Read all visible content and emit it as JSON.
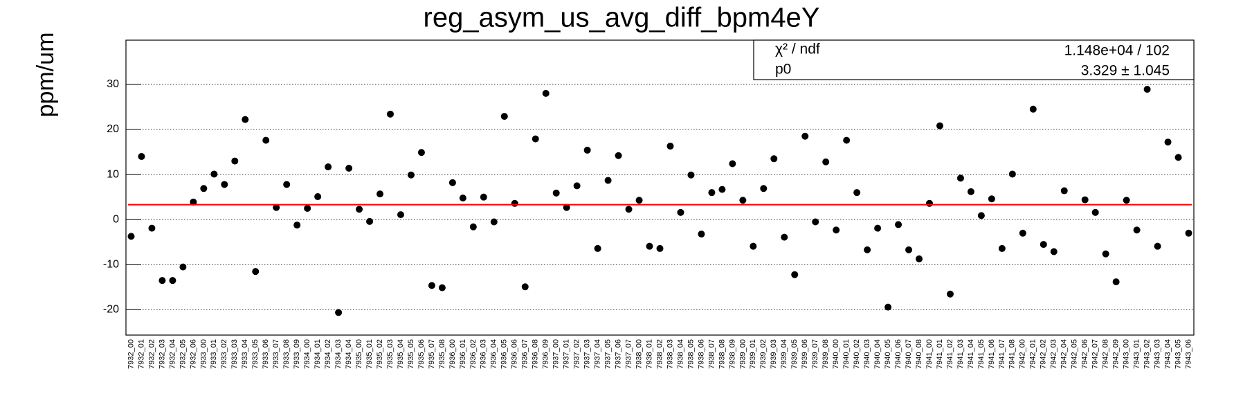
{
  "chart_data": {
    "type": "scatter",
    "title": "reg_asym_us_avg_diff_bpm4eY",
    "y_label": "ppm/um",
    "categories": [
      "7932_00",
      "7932_01",
      "7932_02",
      "7932_03",
      "7932_04",
      "7932_05",
      "7932_06",
      "7933_00",
      "7933_01",
      "7933_02",
      "7933_03",
      "7933_04",
      "7933_05",
      "7933_06",
      "7933_07",
      "7933_08",
      "7933_09",
      "7934_00",
      "7934_01",
      "7934_02",
      "7934_03",
      "7934_04",
      "7935_00",
      "7935_01",
      "7935_02",
      "7935_03",
      "7935_04",
      "7935_05",
      "7935_06",
      "7935_07",
      "7935_08",
      "7936_00",
      "7936_01",
      "7936_02",
      "7936_03",
      "7936_04",
      "7936_05",
      "7936_06",
      "7936_07",
      "7936_08",
      "7936_09",
      "7937_00",
      "7937_01",
      "7937_02",
      "7937_03",
      "7937_04",
      "7937_05",
      "7937_06",
      "7937_07",
      "7938_00",
      "7938_01",
      "7938_02",
      "7938_03",
      "7938_04",
      "7938_05",
      "7938_06",
      "7938_07",
      "7938_08",
      "7938_09",
      "7939_00",
      "7939_01",
      "7939_02",
      "7939_03",
      "7939_04",
      "7939_05",
      "7939_06",
      "7939_07",
      "7939_08",
      "7940_00",
      "7940_01",
      "7940_02",
      "7940_03",
      "7940_04",
      "7940_05",
      "7940_06",
      "7940_07",
      "7940_08",
      "7941_00",
      "7941_01",
      "7941_02",
      "7941_03",
      "7941_04",
      "7941_05",
      "7941_06",
      "7941_07",
      "7941_08",
      "7942_00",
      "7942_01",
      "7942_02",
      "7942_03",
      "7942_04",
      "7942_05",
      "7942_06",
      "7942_07",
      "7942_08",
      "7942_09",
      "7943_00",
      "7943_01",
      "7943_02",
      "7943_03",
      "7943_04",
      "7943_05",
      "7943_06"
    ],
    "values": [
      -3.7,
      14.0,
      -1.9,
      -13.5,
      -13.5,
      -10.5,
      3.9,
      6.9,
      10.1,
      7.8,
      13.0,
      22.2,
      -11.5,
      17.6,
      2.7,
      7.8,
      -1.2,
      2.5,
      5.1,
      11.7,
      -20.6,
      11.4,
      2.3,
      -0.4,
      5.7,
      23.4,
      1.1,
      9.9,
      14.9,
      -14.6,
      -15.1,
      8.2,
      4.8,
      -1.6,
      5.0,
      -0.5,
      22.9,
      3.6,
      -14.9,
      17.9,
      28.0,
      5.9,
      2.7,
      7.5,
      15.4,
      -6.4,
      8.7,
      14.2,
      2.3,
      4.3,
      -5.9,
      -6.4,
      16.3,
      1.6,
      9.9,
      -3.2,
      6.0,
      6.7,
      12.4,
      4.3,
      -5.9,
      6.9,
      13.5,
      -3.9,
      -12.2,
      18.5,
      -0.5,
      12.8,
      -2.3,
      17.6,
      6.0,
      -6.7,
      -1.9,
      -19.4,
      -1.1,
      -6.7,
      -8.7,
      3.6,
      20.8,
      -16.5,
      9.2,
      6.2,
      0.9,
      4.6,
      -6.4,
      10.1,
      -3.0,
      24.5,
      -5.5,
      -7.1,
      6.4,
      null,
      4.4,
      1.6,
      -7.6,
      -13.8,
      4.3,
      -2.3,
      28.9,
      -5.9,
      17.2,
      13.8,
      -3.0
    ],
    "color": "#000000",
    "ylim": [
      -25.6,
      39.8
    ],
    "yticks": [
      -20,
      -10,
      0,
      10,
      20,
      30
    ],
    "grid": true,
    "fit": {
      "p0": 3.329,
      "color": "#ff0000"
    },
    "stats": {
      "row1_label": "χ² / ndf",
      "row1_value": "1.148e+04 / 102",
      "row2_label": "p0",
      "row2_value": "3.329 ± 1.045"
    }
  }
}
